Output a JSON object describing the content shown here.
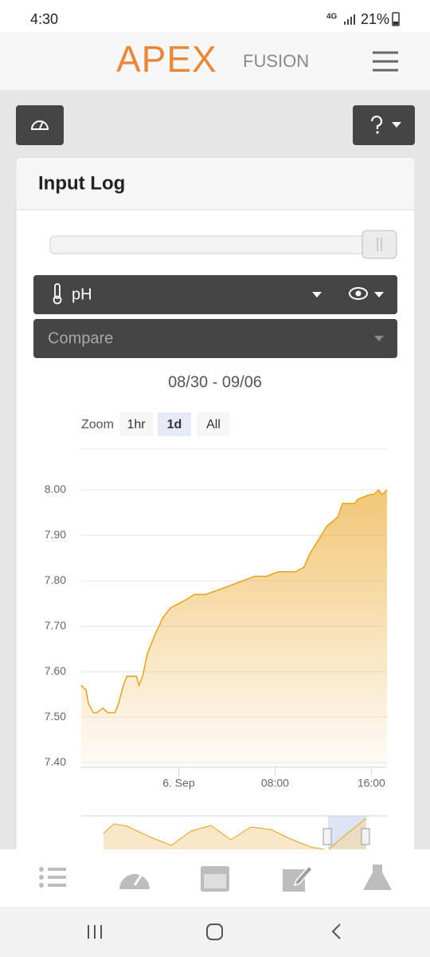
{
  "status_bar": {
    "time": "4:30",
    "network": "4G",
    "battery": "21%"
  },
  "header": {
    "logo_main": "APEX",
    "logo_sub": "FUSION"
  },
  "card": {
    "title": "Input Log",
    "input_select": "pH",
    "compare_placeholder": "Compare",
    "date_range": "08/30 - 09/06",
    "zoom_label": "Zoom",
    "zoom_options": [
      {
        "label": "1hr",
        "active": false
      },
      {
        "label": "1d",
        "active": true
      },
      {
        "label": "All",
        "active": false
      }
    ]
  },
  "chart_data": {
    "type": "area",
    "color": "#e9a21b",
    "grid": true,
    "x": [
      -8.1,
      -7.7,
      -7.5,
      -7.1,
      -6.8,
      -6.3,
      -5.9,
      -5.3,
      -5.0,
      -4.6,
      -4.3,
      -3.5,
      -3.3,
      -3.0,
      -2.6,
      -2.0,
      -1.3,
      -0.7,
      0,
      0.7,
      1.3,
      2.2,
      3.3,
      4.3,
      5.3,
      6.3,
      7.3,
      8.3,
      9.7,
      10.4,
      10.9,
      11.6,
      12.3,
      13.2,
      13.6,
      14.6,
      14.9,
      15.9,
      16.2,
      16.6,
      16.9,
      17.3
    ],
    "values": [
      7.57,
      7.56,
      7.53,
      7.51,
      7.51,
      7.52,
      7.51,
      7.51,
      7.53,
      7.57,
      7.59,
      7.59,
      7.57,
      7.59,
      7.64,
      7.68,
      7.72,
      7.74,
      7.75,
      7.76,
      7.77,
      7.77,
      7.78,
      7.79,
      7.8,
      7.81,
      7.81,
      7.82,
      7.82,
      7.83,
      7.86,
      7.89,
      7.92,
      7.94,
      7.97,
      7.97,
      7.98,
      7.99,
      7.99,
      8.0,
      7.99,
      8.0
    ],
    "xlim": [
      -8.1,
      17.3
    ],
    "xticks": [
      {
        "value": 0,
        "label": "6. Sep"
      },
      {
        "value": 8,
        "label": "08:00"
      },
      {
        "value": 16,
        "label": "16:00"
      }
    ],
    "ylim": [
      7.39,
      8.09
    ],
    "yticks": [
      {
        "value": 7.4,
        "label": "7.40"
      },
      {
        "value": 7.5,
        "label": "7.50"
      },
      {
        "value": 7.6,
        "label": "7.60"
      },
      {
        "value": 7.7,
        "label": "7.70"
      },
      {
        "value": 7.8,
        "label": "7.80"
      },
      {
        "value": 7.9,
        "label": "7.90"
      },
      {
        "value": 8,
        "label": "8.00"
      }
    ]
  }
}
